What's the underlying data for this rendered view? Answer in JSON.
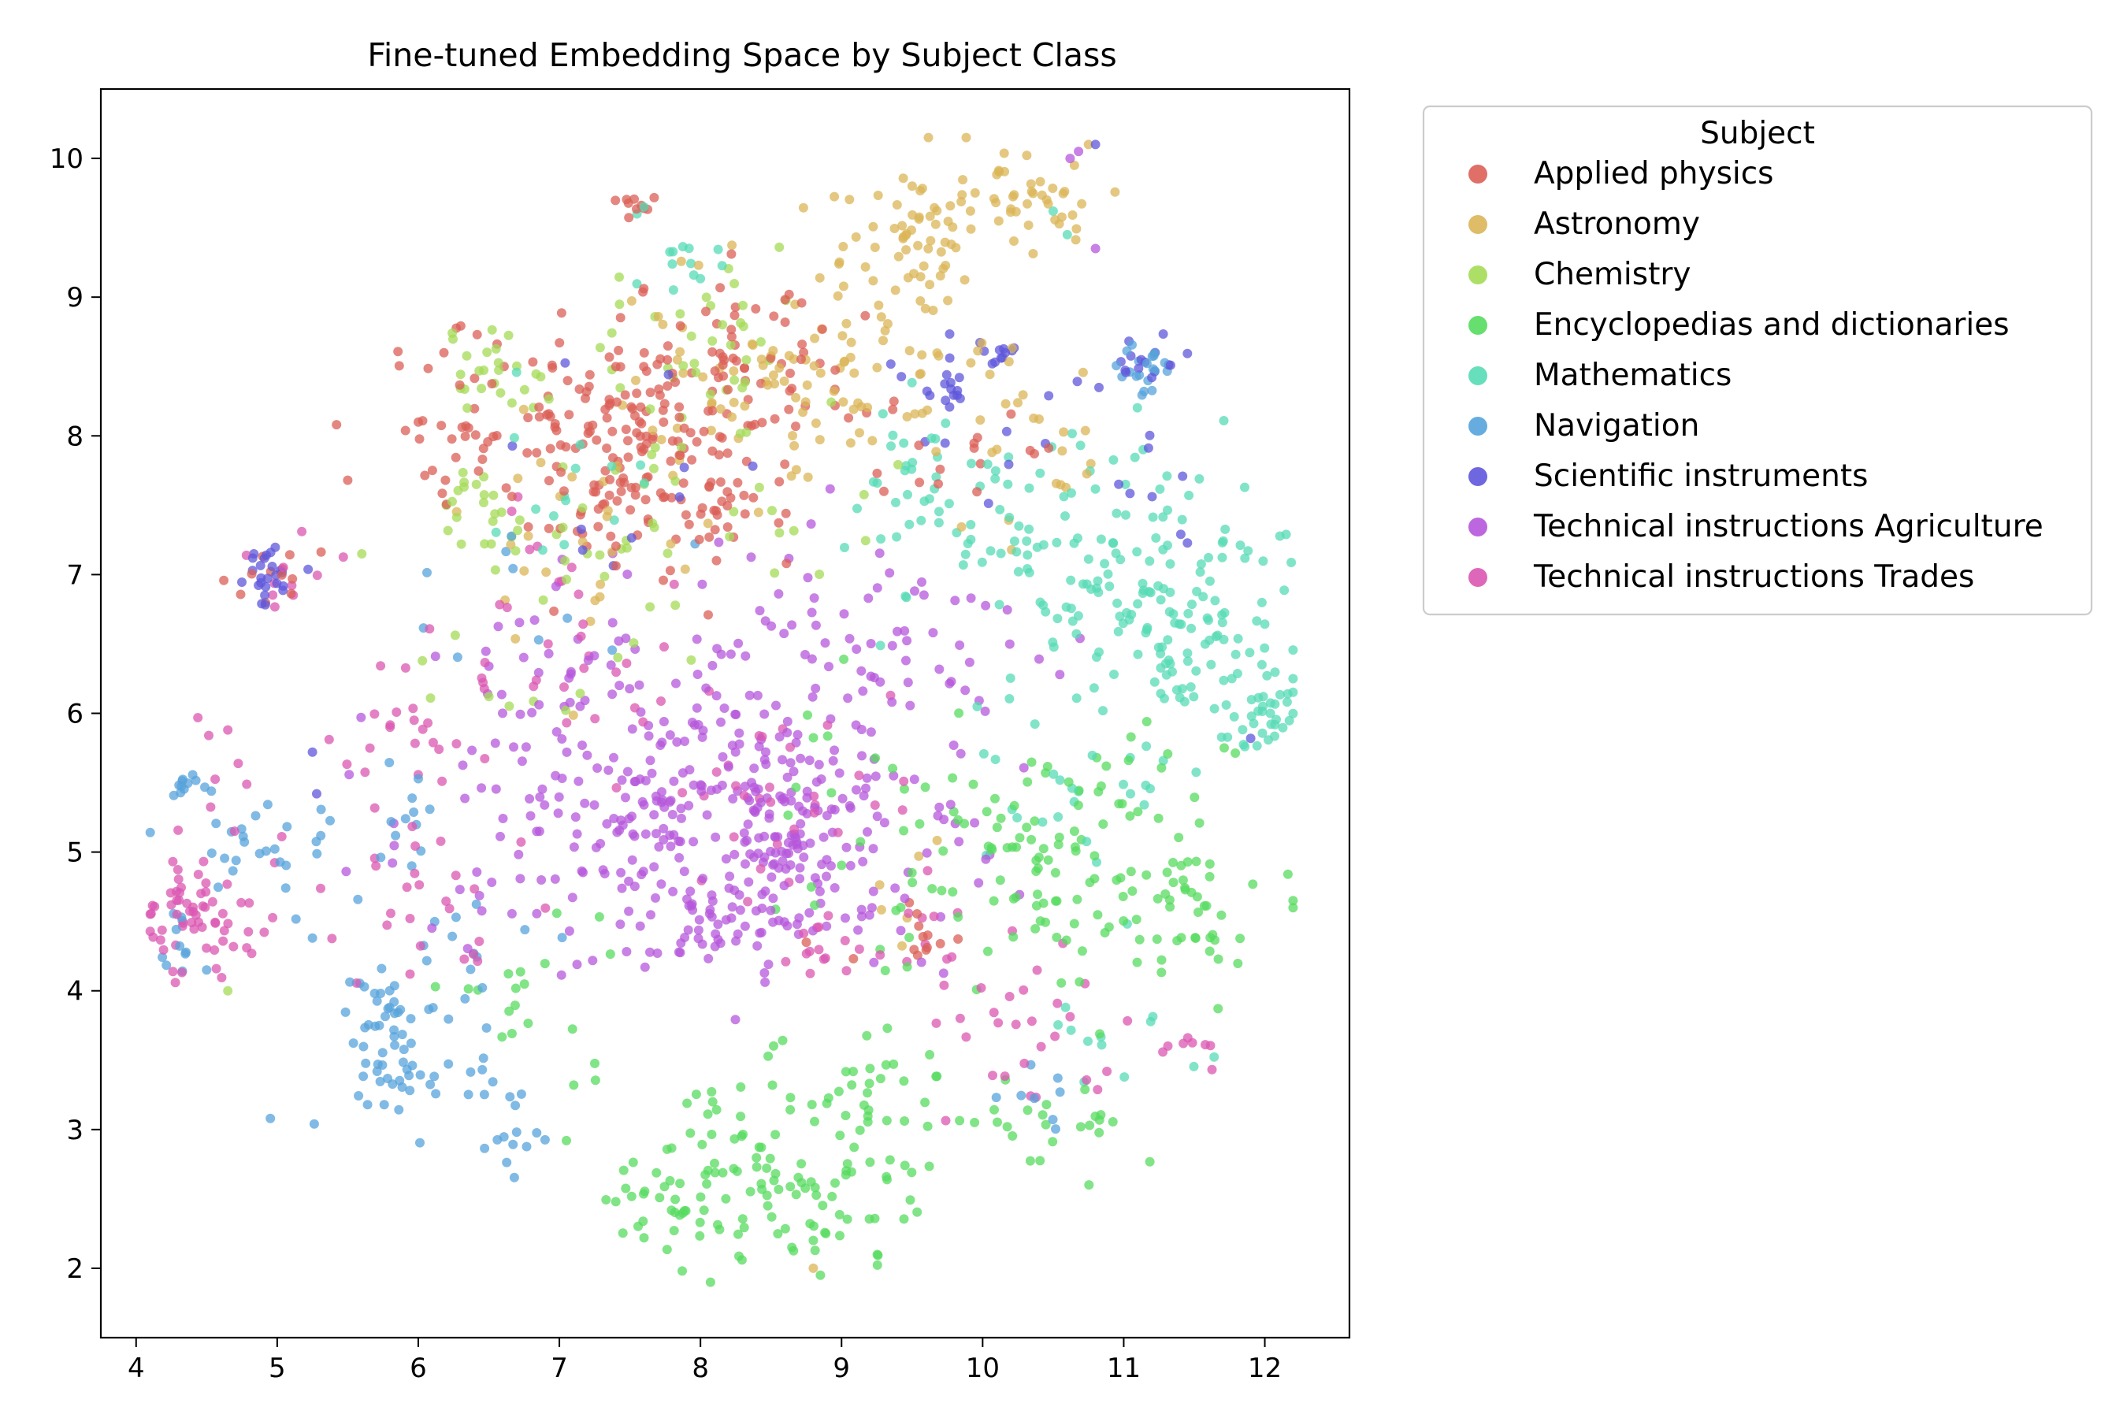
{
  "chart_data": {
    "type": "scatter",
    "title": "Fine-tuned Embedding Space by Subject Class",
    "xlabel": "",
    "ylabel": "",
    "xlim": [
      3.75,
      12.6
    ],
    "ylim": [
      1.5,
      10.5
    ],
    "x_ticks": [
      "4",
      "5",
      "6",
      "7",
      "8",
      "9",
      "10",
      "11",
      "12"
    ],
    "y_ticks": [
      "2",
      "3",
      "4",
      "5",
      "6",
      "7",
      "8",
      "9",
      "10"
    ],
    "grid": false,
    "legend_title": "Subject",
    "legend_position": "outside-right-top",
    "series": [
      {
        "name": "Applied physics",
        "color": "#db5f57",
        "clusters": [
          {
            "center": [
              7.6,
              7.9
            ],
            "spread": [
              0.55,
              0.45
            ],
            "n": 190
          },
          {
            "center": [
              8.3,
              8.5
            ],
            "spread": [
              0.6,
              0.3
            ],
            "n": 60
          },
          {
            "center": [
              6.5,
              8.2
            ],
            "spread": [
              0.45,
              0.35
            ],
            "n": 40
          },
          {
            "center": [
              5.0,
              7.0
            ],
            "spread": [
              0.15,
              0.15
            ],
            "n": 12
          },
          {
            "center": [
              9.6,
              4.4
            ],
            "spread": [
              0.2,
              0.2
            ],
            "n": 12
          },
          {
            "center": [
              9.9,
              7.9
            ],
            "spread": [
              0.35,
              0.3
            ],
            "n": 15
          },
          {
            "center": [
              7.55,
              9.65
            ],
            "spread": [
              0.1,
              0.05
            ],
            "n": 10
          }
        ],
        "points": [
          [
            5.5,
            7.68
          ],
          [
            6.0,
            8.1
          ],
          [
            9.3,
            7.6
          ],
          [
            8.75,
            4.35
          ]
        ]
      },
      {
        "name": "Astronomy",
        "color": "#dbb557",
        "clusters": [
          {
            "center": [
              10.1,
              9.7
            ],
            "spread": [
              0.45,
              0.18
            ],
            "n": 60
          },
          {
            "center": [
              9.5,
              9.25
            ],
            "spread": [
              0.3,
              0.25
            ],
            "n": 40
          },
          {
            "center": [
              9.0,
              8.6
            ],
            "spread": [
              0.55,
              0.35
            ],
            "n": 60
          },
          {
            "center": [
              8.2,
              8.2
            ],
            "spread": [
              0.5,
              0.35
            ],
            "n": 40
          },
          {
            "center": [
              10.3,
              8.0
            ],
            "spread": [
              0.4,
              0.4
            ],
            "n": 25
          },
          {
            "center": [
              7.2,
              7.3
            ],
            "spread": [
              0.5,
              0.4
            ],
            "n": 25
          },
          {
            "center": [
              9.5,
              4.7
            ],
            "spread": [
              0.2,
              0.2
            ],
            "n": 6
          }
        ],
        "points": [
          [
            10.75,
            10.1
          ],
          [
            10.65,
            9.95
          ],
          [
            8.8,
            2.0
          ]
        ]
      },
      {
        "name": "Chemistry",
        "color": "#a4db57",
        "clusters": [
          {
            "center": [
              6.5,
              8.5
            ],
            "spread": [
              0.2,
              0.15
            ],
            "n": 25
          },
          {
            "center": [
              6.4,
              7.5
            ],
            "spread": [
              0.15,
              0.15
            ],
            "n": 20
          },
          {
            "center": [
              8.0,
              8.6
            ],
            "spread": [
              0.4,
              0.3
            ],
            "n": 35
          },
          {
            "center": [
              7.2,
              7.3
            ],
            "spread": [
              0.4,
              0.3
            ],
            "n": 20
          },
          {
            "center": [
              8.3,
              7.5
            ],
            "spread": [
              0.5,
              0.4
            ],
            "n": 25
          },
          {
            "center": [
              6.8,
              6.3
            ],
            "spread": [
              0.4,
              0.3
            ],
            "n": 10
          }
        ],
        "points": [
          [
            4.65,
            4.0
          ],
          [
            5.6,
            7.15
          ]
        ]
      },
      {
        "name": "Encyclopedias and dictionaries",
        "color": "#57db5f",
        "clusters": [
          {
            "center": [
              8.6,
              2.7
            ],
            "spread": [
              0.55,
              0.35
            ],
            "n": 110
          },
          {
            "center": [
              7.9,
              2.45
            ],
            "spread": [
              0.3,
              0.2
            ],
            "n": 25
          },
          {
            "center": [
              9.2,
              3.3
            ],
            "spread": [
              0.3,
              0.3
            ],
            "n": 25
          },
          {
            "center": [
              10.6,
              4.9
            ],
            "spread": [
              0.6,
              0.45
            ],
            "n": 120
          },
          {
            "center": [
              11.4,
              4.5
            ],
            "spread": [
              0.2,
              0.3
            ],
            "n": 30
          },
          {
            "center": [
              10.7,
              2.9
            ],
            "spread": [
              0.4,
              0.2
            ],
            "n": 15
          },
          {
            "center": [
              9.3,
              5.5
            ],
            "spread": [
              0.35,
              0.4
            ],
            "n": 20
          },
          {
            "center": [
              6.9,
              4.0
            ],
            "spread": [
              0.35,
              0.25
            ],
            "n": 20
          },
          {
            "center": [
              10.0,
              3.1
            ],
            "spread": [
              0.25,
              0.15
            ],
            "n": 10
          }
        ],
        "points": [
          [
            7.6,
            2.22
          ],
          [
            7.4,
            2.48
          ],
          [
            8.85,
            1.95
          ],
          [
            7.05,
            2.92
          ]
        ]
      },
      {
        "name": "Mathematics",
        "color": "#57dbb5",
        "clusters": [
          {
            "center": [
              11.2,
              6.9
            ],
            "spread": [
              0.5,
              0.5
            ],
            "n": 130
          },
          {
            "center": [
              12.0,
              6.0
            ],
            "spread": [
              0.15,
              0.15
            ],
            "n": 35
          },
          {
            "center": [
              10.3,
              7.3
            ],
            "spread": [
              0.6,
              0.4
            ],
            "n": 45
          },
          {
            "center": [
              9.6,
              7.6
            ],
            "spread": [
              0.3,
              0.25
            ],
            "n": 30
          },
          {
            "center": [
              11.5,
              6.4
            ],
            "spread": [
              0.3,
              0.25
            ],
            "n": 25
          },
          {
            "center": [
              10.8,
              5.4
            ],
            "spread": [
              0.4,
              0.3
            ],
            "n": 25
          },
          {
            "center": [
              7.8,
              9.2
            ],
            "spread": [
              0.2,
              0.1
            ],
            "n": 12
          },
          {
            "center": [
              7.0,
              7.8
            ],
            "spread": [
              0.45,
              0.4
            ],
            "n": 15
          },
          {
            "center": [
              10.9,
              3.6
            ],
            "spread": [
              0.3,
              0.2
            ],
            "n": 12
          }
        ],
        "points": [
          [
            7.55,
            9.6
          ],
          [
            7.6,
            9.65
          ],
          [
            10.6,
            9.45
          ],
          [
            10.5,
            9.62
          ]
        ]
      },
      {
        "name": "Navigation",
        "color": "#57a3db",
        "clusters": [
          {
            "center": [
              5.85,
              3.6
            ],
            "spread": [
              0.15,
              0.2
            ],
            "n": 35
          },
          {
            "center": [
              5.7,
              4.0
            ],
            "spread": [
              0.15,
              0.15
            ],
            "n": 15
          },
          {
            "center": [
              6.4,
              3.3
            ],
            "spread": [
              0.35,
              0.25
            ],
            "n": 25
          },
          {
            "center": [
              6.8,
              2.95
            ],
            "spread": [
              0.1,
              0.03
            ],
            "n": 6
          },
          {
            "center": [
              4.35,
              5.42
            ],
            "spread": [
              0.06,
              0.05
            ],
            "n": 12
          },
          {
            "center": [
              4.7,
              5.0
            ],
            "spread": [
              0.35,
              0.25
            ],
            "n": 25
          },
          {
            "center": [
              4.3,
              4.4
            ],
            "spread": [
              0.12,
              0.15
            ],
            "n": 10
          },
          {
            "center": [
              5.9,
              5.0
            ],
            "spread": [
              0.2,
              0.35
            ],
            "n": 15
          },
          {
            "center": [
              6.4,
              4.3
            ],
            "spread": [
              0.25,
              0.2
            ],
            "n": 12
          },
          {
            "center": [
              11.15,
              8.5
            ],
            "spread": [
              0.1,
              0.1
            ],
            "n": 20
          },
          {
            "center": [
              10.5,
              3.3
            ],
            "spread": [
              0.15,
              0.15
            ],
            "n": 8
          },
          {
            "center": [
              6.7,
              6.8
            ],
            "spread": [
              0.4,
              0.3
            ],
            "n": 10
          }
        ],
        "points": [
          [
            4.5,
            4.15
          ],
          [
            5.25,
            4.38
          ]
        ]
      },
      {
        "name": "Scientific instruments",
        "color": "#5f57db",
        "clusters": [
          {
            "center": [
              4.9,
              7.0
            ],
            "spread": [
              0.12,
              0.12
            ],
            "n": 25
          },
          {
            "center": [
              9.75,
              8.3
            ],
            "spread": [
              0.12,
              0.08
            ],
            "n": 12
          },
          {
            "center": [
              10.15,
              8.6
            ],
            "spread": [
              0.08,
              0.05
            ],
            "n": 10
          },
          {
            "center": [
              11.1,
              8.55
            ],
            "spread": [
              0.15,
              0.1
            ],
            "n": 15
          },
          {
            "center": [
              10.0,
              8.3
            ],
            "spread": [
              0.5,
              0.35
            ],
            "n": 15
          },
          {
            "center": [
              7.4,
              7.5
            ],
            "spread": [
              0.6,
              0.4
            ],
            "n": 10
          },
          {
            "center": [
              11.3,
              7.6
            ],
            "spread": [
              0.2,
              0.3
            ],
            "n": 8
          }
        ],
        "points": [
          [
            10.8,
            10.1
          ],
          [
            11.9,
            5.82
          ],
          [
            5.25,
            5.72
          ],
          [
            5.28,
            5.42
          ]
        ]
      },
      {
        "name": "Technical instructions Agriculture",
        "color": "#b557db",
        "clusters": [
          {
            "center": [
              8.5,
              5.0
            ],
            "spread": [
              0.75,
              0.55
            ],
            "n": 190
          },
          {
            "center": [
              7.2,
              5.1
            ],
            "spread": [
              0.45,
              0.45
            ],
            "n": 70
          },
          {
            "center": [
              8.6,
              4.95
            ],
            "spread": [
              0.1,
              0.1
            ],
            "n": 25
          },
          {
            "center": [
              8.3,
              5.6
            ],
            "spread": [
              0.5,
              0.2
            ],
            "n": 40
          },
          {
            "center": [
              9.0,
              6.5
            ],
            "spread": [
              0.6,
              0.4
            ],
            "n": 60
          },
          {
            "center": [
              7.5,
              6.2
            ],
            "spread": [
              0.7,
              0.5
            ],
            "n": 60
          },
          {
            "center": [
              8.0,
              4.4
            ],
            "spread": [
              0.4,
              0.15
            ],
            "n": 30
          },
          {
            "center": [
              6.5,
              5.5
            ],
            "spread": [
              0.4,
              0.5
            ],
            "n": 25
          },
          {
            "center": [
              10.0,
              6.5
            ],
            "spread": [
              0.4,
              0.4
            ],
            "n": 15
          }
        ],
        "points": [
          [
            10.8,
            9.35
          ],
          [
            10.62,
            10.0
          ],
          [
            10.68,
            10.05
          ]
        ]
      },
      {
        "name": "Technical instructions Trades",
        "color": "#db57b2",
        "clusters": [
          {
            "center": [
              4.5,
              4.5
            ],
            "spread": [
              0.25,
              0.2
            ],
            "n": 60
          },
          {
            "center": [
              4.7,
              5.2
            ],
            "spread": [
              0.2,
              0.3
            ],
            "n": 12
          },
          {
            "center": [
              5.9,
              5.8
            ],
            "spread": [
              0.25,
              0.25
            ],
            "n": 20
          },
          {
            "center": [
              6.2,
              4.7
            ],
            "spread": [
              0.35,
              0.3
            ],
            "n": 25
          },
          {
            "center": [
              8.4,
              5.3
            ],
            "spread": [
              0.5,
              0.3
            ],
            "n": 30
          },
          {
            "center": [
              8.8,
              4.3
            ],
            "spread": [
              0.15,
              0.1
            ],
            "n": 15
          },
          {
            "center": [
              10.2,
              3.8
            ],
            "spread": [
              0.35,
              0.3
            ],
            "n": 30
          },
          {
            "center": [
              11.4,
              3.6
            ],
            "spread": [
              0.15,
              0.1
            ],
            "n": 8
          },
          {
            "center": [
              7.0,
              6.6
            ],
            "spread": [
              0.6,
              0.5
            ],
            "n": 35
          },
          {
            "center": [
              5.2,
              7.0
            ],
            "spread": [
              0.2,
              0.2
            ],
            "n": 10
          },
          {
            "center": [
              9.7,
              4.5
            ],
            "spread": [
              0.15,
              0.15
            ],
            "n": 8
          }
        ],
        "points": [
          [
            4.65,
            5.88
          ],
          [
            5.8,
            5.9
          ],
          [
            5.7,
            4.9
          ]
        ]
      }
    ]
  }
}
